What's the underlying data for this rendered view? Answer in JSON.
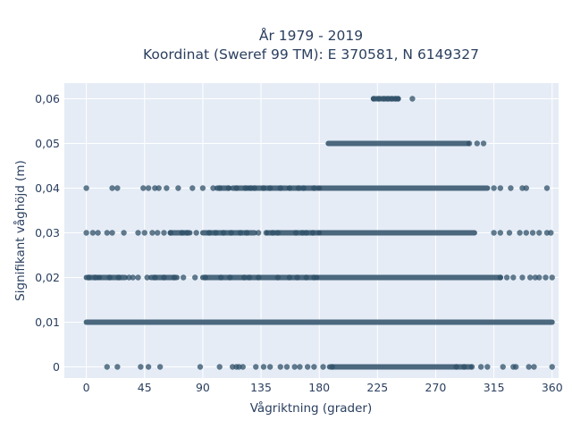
{
  "chart_data": {
    "type": "scatter",
    "title": "År 1979 - 2019",
    "subtitle": "Koordinat (Sweref 99 TM): E 370581, N 6149327",
    "xlabel": "Vågriktning (grader)",
    "ylabel": "Signifikant våghöjd (m)",
    "xlim": [
      -17,
      365
    ],
    "ylim": [
      -0.0025,
      0.0635
    ],
    "x_ticks": [
      0,
      45,
      90,
      135,
      180,
      225,
      270,
      315,
      360
    ],
    "x_tick_labels": [
      "0",
      "45",
      "90",
      "135",
      "180",
      "225",
      "270",
      "315",
      "360"
    ],
    "y_ticks": [
      0,
      0.01,
      0.02,
      0.03,
      0.04,
      0.05,
      0.06
    ],
    "y_tick_labels": [
      "0",
      "0,01",
      "0,02",
      "0,03",
      "0,04",
      "0,05",
      "0,06"
    ],
    "grid": true,
    "background_color": "#e5ecf6",
    "marker_color": "#2f5068",
    "series": [
      {
        "y": 0,
        "points": [
          16,
          24,
          42,
          48,
          57,
          88,
          103,
          113,
          116,
          118,
          121,
          131,
          137,
          142,
          150,
          155,
          161,
          165,
          171,
          176,
          183,
          190,
          286,
          292,
          298,
          305,
          310,
          322,
          330,
          332,
          342,
          346,
          360
        ],
        "dense_ranges": [
          [
            188,
            297
          ]
        ]
      },
      {
        "y": 0.01,
        "points": [],
        "dense_ranges": [
          [
            0,
            360
          ]
        ]
      },
      {
        "y": 0.02,
        "points": [
          2,
          7,
          18,
          25,
          33,
          36,
          40,
          47,
          53,
          60,
          68,
          75,
          84,
          92,
          104,
          111,
          122,
          126,
          133,
          148,
          157,
          163,
          170,
          176,
          320,
          325,
          330,
          337,
          343,
          347,
          350,
          355,
          360
        ],
        "dense_ranges": [
          [
            0,
            10
          ],
          [
            10,
            30
          ],
          [
            50,
            70
          ],
          [
            90,
            178
          ],
          [
            178,
            320
          ]
        ]
      },
      {
        "y": 0.03,
        "points": [
          0,
          5,
          9,
          16,
          20,
          29,
          40,
          45,
          51,
          55,
          60,
          65,
          74,
          78,
          85,
          95,
          100,
          106,
          112,
          119,
          124,
          133,
          139,
          144,
          148,
          162,
          167,
          170,
          175,
          315,
          320,
          327,
          335,
          340,
          345,
          350,
          356,
          359
        ],
        "dense_ranges": [
          [
            65,
            80
          ],
          [
            90,
            130
          ],
          [
            140,
            180
          ],
          [
            180,
            300
          ]
        ]
      },
      {
        "y": 0.04,
        "points": [
          0,
          20,
          24,
          44,
          48,
          53,
          56,
          62,
          71,
          82,
          90,
          98,
          103,
          110,
          116,
          123,
          127,
          130,
          137,
          142,
          150,
          157,
          164,
          168,
          176,
          315,
          320,
          328,
          337,
          340,
          356
        ],
        "dense_ranges": [
          [
            101,
            110
          ],
          [
            113,
            125
          ],
          [
            125,
            155
          ],
          [
            157,
            180
          ],
          [
            180,
            310
          ]
        ]
      },
      {
        "y": 0.05,
        "points": [
          296,
          302,
          307
        ],
        "dense_ranges": [
          [
            187,
            295
          ]
        ]
      },
      {
        "y": 0.06,
        "points": [
          222,
          226,
          230,
          233,
          236,
          239,
          241,
          252
        ],
        "dense_ranges": [
          [
            222,
            241
          ]
        ]
      }
    ]
  }
}
